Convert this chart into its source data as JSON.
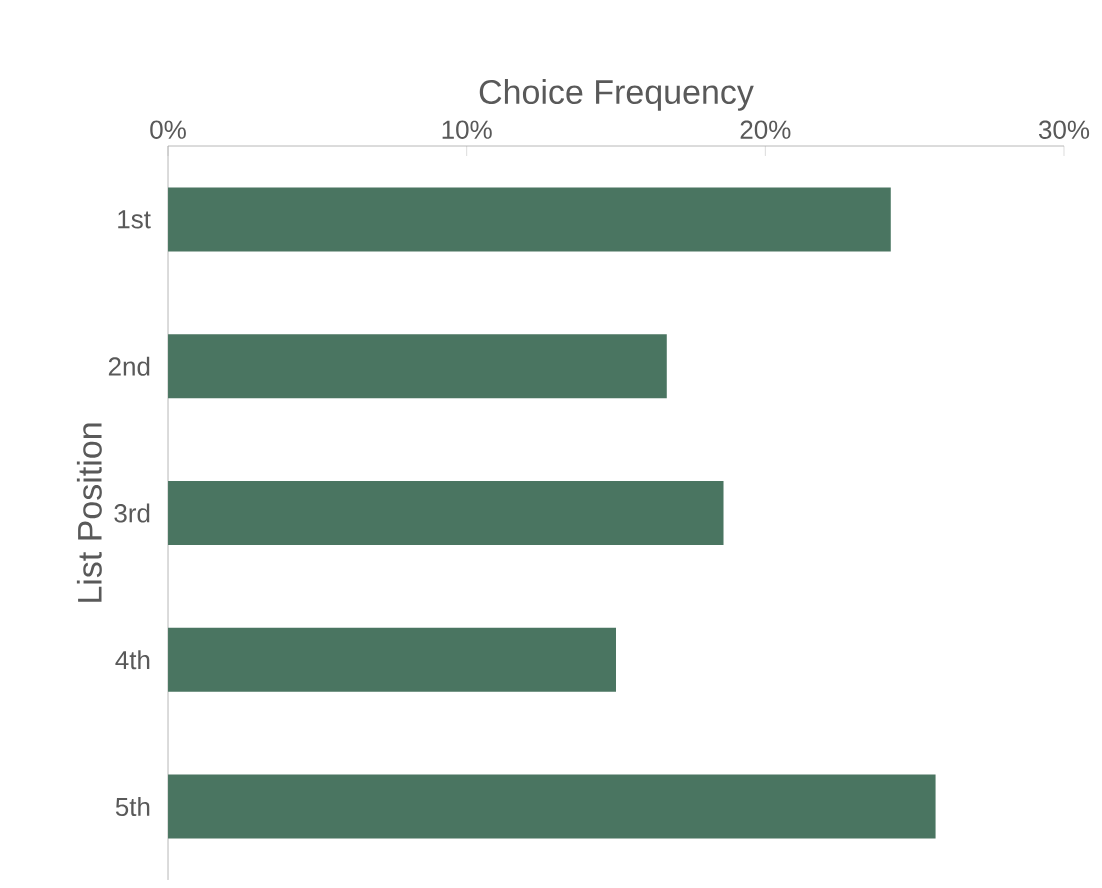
{
  "chart_data": {
    "type": "bar",
    "orientation": "horizontal",
    "xlabel": "Choice Frequency",
    "ylabel": "List Position",
    "categories": [
      "1st",
      "2nd",
      "3rd",
      "4th",
      "5th"
    ],
    "values": [
      24.2,
      16.7,
      18.6,
      15.0,
      25.7
    ],
    "color": "#4a7561",
    "xlim": [
      0,
      30
    ],
    "xticks": [
      {
        "value": 0,
        "label": "0%"
      },
      {
        "value": 10,
        "label": "10%"
      },
      {
        "value": 20,
        "label": "20%"
      },
      {
        "value": 30,
        "label": "30%"
      }
    ],
    "grid": false
  }
}
